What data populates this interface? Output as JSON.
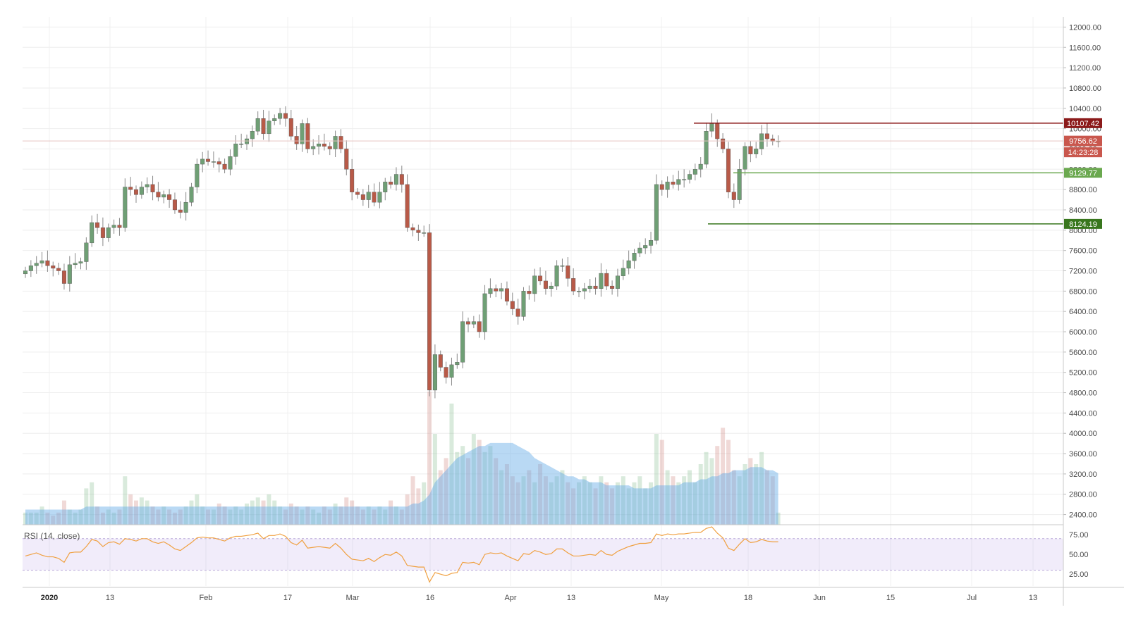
{
  "chart_data": {
    "type": "candlestick",
    "price_axis": {
      "min": 2200,
      "max": 12200,
      "ticks": [
        "12000.00",
        "11600.00",
        "11200.00",
        "10800.00",
        "10400.00",
        "10000.00",
        "9600.00",
        "9200.00",
        "8800.00",
        "8400.00",
        "8000.00",
        "7600.00",
        "7200.00",
        "6800.00",
        "6400.00",
        "6000.00",
        "5600.00",
        "5200.00",
        "4800.00",
        "4400.00",
        "4000.00",
        "3600.00",
        "3200.00",
        "2800.00",
        "2400.00"
      ]
    },
    "x_axis": {
      "ticks": [
        {
          "label": "2020",
          "bold": true
        },
        {
          "label": "13"
        },
        {
          "label": "Feb"
        },
        {
          "label": "17"
        },
        {
          "label": "Mar"
        },
        {
          "label": "16"
        },
        {
          "label": "Apr"
        },
        {
          "label": "13"
        },
        {
          "label": "May"
        },
        {
          "label": "18"
        },
        {
          "label": "Jun"
        },
        {
          "label": "15"
        },
        {
          "label": "Jul"
        },
        {
          "label": "13"
        }
      ]
    },
    "closes": [
      7200,
      7300,
      7350,
      7400,
      7300,
      7250,
      7200,
      6950,
      7320,
      7350,
      7380,
      7750,
      8150,
      8050,
      7850,
      8050,
      8100,
      8050,
      8850,
      8800,
      8700,
      8850,
      8900,
      8750,
      8650,
      8700,
      8600,
      8400,
      8350,
      8550,
      8850,
      9300,
      9400,
      9350,
      9350,
      9300,
      9200,
      9450,
      9700,
      9700,
      9800,
      9950,
      10200,
      9900,
      10150,
      10200,
      10300,
      10200,
      9850,
      9700,
      10100,
      9600,
      9650,
      9700,
      9650,
      9600,
      9850,
      9600,
      9200,
      8750,
      8700,
      8600,
      8750,
      8550,
      8750,
      8950,
      8900,
      9100,
      8900,
      8050,
      8000,
      7950,
      7950,
      4850,
      5550,
      5300,
      5100,
      5350,
      5400,
      6200,
      6150,
      6200,
      6000,
      6750,
      6850,
      6800,
      6850,
      6600,
      6450,
      6300,
      6800,
      6750,
      7100,
      7000,
      6850,
      6900,
      7300,
      7300,
      7050,
      6800,
      6800,
      6850,
      6900,
      6850,
      7150,
      6900,
      6850,
      7100,
      7250,
      7400,
      7550,
      7650,
      7700,
      7800,
      8900,
      8800,
      8950,
      8900,
      9000,
      9000,
      9100,
      9200,
      9300,
      9950,
      10100,
      9800,
      9600,
      8750,
      8600,
      9200,
      9650,
      9500,
      9600,
      9900,
      9800,
      9750,
      9756.62
    ],
    "levels": [
      {
        "value": "10107.42",
        "color": "#8b1a1a",
        "kind": "resistance"
      },
      {
        "value": "9756.62",
        "color": "#c9574d",
        "kind": "current"
      },
      {
        "value": "9129.77",
        "color": "#6aa84f",
        "kind": "support"
      },
      {
        "value": "8124.19",
        "color": "#38761d",
        "kind": "support"
      }
    ],
    "countdown": "14:23:28",
    "rsi": {
      "label": "RSI (14, close)",
      "upper": 70,
      "lower": 30,
      "ticks": [
        "75.00",
        "50.00",
        "25.00"
      ],
      "values": [
        48,
        50,
        52,
        49,
        47,
        47,
        45,
        40,
        52,
        53,
        53,
        60,
        69,
        67,
        60,
        65,
        66,
        63,
        70,
        69,
        67,
        70,
        70,
        66,
        64,
        66,
        62,
        57,
        55,
        60,
        65,
        71,
        72,
        71,
        71,
        69,
        67,
        71,
        73,
        73,
        74,
        75,
        77,
        70,
        74,
        74,
        76,
        73,
        65,
        62,
        68,
        58,
        59,
        60,
        59,
        58,
        64,
        58,
        50,
        44,
        43,
        42,
        45,
        41,
        46,
        50,
        49,
        53,
        48,
        36,
        35,
        34,
        34,
        15,
        27,
        25,
        23,
        26,
        27,
        40,
        39,
        40,
        37,
        50,
        52,
        51,
        52,
        48,
        45,
        42,
        51,
        50,
        55,
        53,
        50,
        51,
        57,
        57,
        52,
        48,
        48,
        49,
        50,
        49,
        55,
        50,
        49,
        54,
        57,
        60,
        62,
        64,
        64,
        65,
        76,
        74,
        76,
        75,
        76,
        76,
        77,
        78,
        78,
        83,
        85,
        77,
        71,
        58,
        55,
        63,
        70,
        65,
        66,
        69,
        67,
        66,
        66
      ]
    },
    "volume": {
      "values": [
        4,
        4,
        4,
        6,
        4,
        3,
        4,
        8,
        5,
        4,
        5,
        12,
        14,
        6,
        4,
        5,
        4,
        5,
        16,
        10,
        8,
        9,
        8,
        6,
        5,
        6,
        5,
        4,
        5,
        6,
        8,
        10,
        6,
        5,
        5,
        7,
        6,
        5,
        6,
        5,
        7,
        8,
        9,
        8,
        10,
        8,
        6,
        5,
        7,
        6,
        5,
        6,
        5,
        4,
        6,
        5,
        7,
        6,
        9,
        8,
        6,
        5,
        6,
        5,
        6,
        5,
        8,
        6,
        5,
        10,
        16,
        12,
        14,
        44,
        30,
        18,
        22,
        40,
        24,
        26,
        22,
        30,
        28,
        24,
        26,
        22,
        18,
        20,
        16,
        14,
        16,
        18,
        14,
        20,
        16,
        14,
        16,
        18,
        14,
        12,
        14,
        16,
        14,
        12,
        16,
        14,
        12,
        14,
        16,
        12,
        14,
        16,
        12,
        14,
        30,
        28,
        18,
        16,
        14,
        16,
        18,
        14,
        20,
        24,
        22,
        26,
        32,
        28,
        18,
        16,
        20,
        22,
        20,
        24,
        18,
        16,
        4
      ],
      "ma": [
        5,
        5,
        5,
        5,
        5,
        5,
        5,
        5,
        5,
        5,
        5,
        6,
        6,
        6,
        6,
        6,
        6,
        6,
        6,
        6,
        6,
        6,
        6,
        6,
        6,
        6,
        6,
        6,
        6,
        6,
        6,
        6,
        6,
        6,
        6,
        6,
        6,
        6,
        6,
        6,
        6,
        6,
        6,
        6,
        6,
        6,
        6,
        6,
        6,
        6,
        6,
        6,
        6,
        6,
        6,
        6,
        6,
        6,
        6,
        6,
        6,
        6,
        6,
        6,
        6,
        6,
        6,
        6,
        6,
        6,
        7,
        7,
        8,
        10,
        14,
        16,
        18,
        20,
        22,
        23,
        24,
        25,
        26,
        26,
        27,
        27,
        27,
        27,
        27,
        26,
        25,
        24,
        22,
        21,
        20,
        19,
        18,
        17,
        16,
        16,
        15,
        15,
        14,
        14,
        14,
        13,
        13,
        13,
        13,
        13,
        12,
        12,
        12,
        12,
        13,
        13,
        13,
        13,
        13,
        14,
        14,
        14,
        15,
        15,
        16,
        16,
        17,
        17,
        18,
        18,
        18,
        19,
        19,
        19,
        18,
        18,
        17
      ]
    }
  }
}
